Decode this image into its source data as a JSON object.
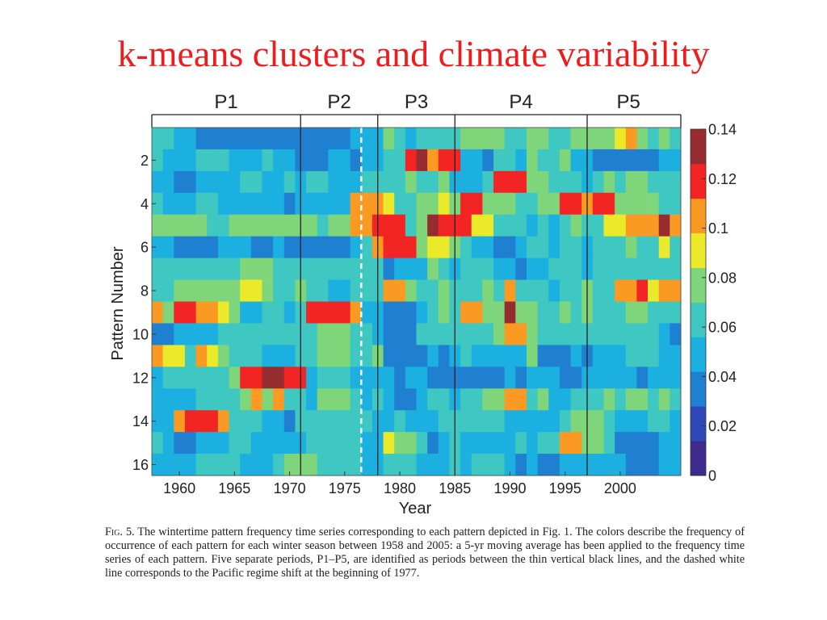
{
  "slide": {
    "title": "k-means clusters and climate variability"
  },
  "caption": {
    "fig_label": "Fig. 5.",
    "text": "The wintertime pattern frequency time series corresponding to each pattern depicted in Fig. 1. The colors describe the frequency of occurrence of each pattern for each winter season between 1958 and 2005: a 5-yr moving average has been applied to the frequency time series of each pattern. Five separate periods, P1–P5, are identified as periods between the thin vertical black lines, and the dashed white line corresponds to the Pacific regime shift at the beginning of 1977."
  },
  "chart_data": {
    "type": "heatmap",
    "xlabel": "Year",
    "ylabel": "Pattern Number",
    "x_start": 1958,
    "x_end": 2005,
    "x_ticks": [
      1960,
      1965,
      1970,
      1975,
      1980,
      1985,
      1990,
      1995,
      2000
    ],
    "y_ticks": [
      2,
      4,
      6,
      8,
      10,
      12,
      14,
      16
    ],
    "years": [
      1958,
      1959,
      1960,
      1961,
      1962,
      1963,
      1964,
      1965,
      1966,
      1967,
      1968,
      1969,
      1970,
      1971,
      1972,
      1973,
      1974,
      1975,
      1976,
      1977,
      1978,
      1979,
      1980,
      1981,
      1982,
      1983,
      1984,
      1985,
      1986,
      1987,
      1988,
      1989,
      1990,
      1991,
      1992,
      1993,
      1994,
      1995,
      1996,
      1997,
      1998,
      1999,
      2000,
      2001,
      2002,
      2003,
      2004,
      2005
    ],
    "patterns": [
      1,
      2,
      3,
      4,
      5,
      6,
      7,
      8,
      9,
      10,
      11,
      12,
      13,
      14,
      15,
      16
    ],
    "values": [
      [
        0.06,
        0.06,
        0.05,
        0.05,
        0.04,
        0.03,
        0.03,
        0.03,
        0.03,
        0.04,
        0.04,
        0.03,
        0.03,
        0.04,
        0.04,
        0.04,
        0.04,
        0.04,
        0.05,
        0.05,
        0.05,
        0.07,
        0.06,
        0.05,
        0.06,
        0.06,
        0.06,
        0.06,
        0.08,
        0.08,
        0.08,
        0.07,
        0.06,
        0.06,
        0.07,
        0.07,
        0.06,
        0.06,
        0.07,
        0.08,
        0.08,
        0.08,
        0.09,
        0.1,
        0.07,
        0.06,
        0.07,
        0.06
      ],
      [
        0.06,
        0.05,
        0.05,
        0.05,
        0.06,
        0.06,
        0.06,
        0.05,
        0.05,
        0.05,
        0.06,
        0.05,
        0.05,
        0.04,
        0.04,
        0.04,
        0.05,
        0.05,
        0.04,
        0.05,
        0.05,
        0.06,
        0.06,
        0.12,
        0.13,
        0.1,
        0.12,
        0.12,
        0.05,
        0.05,
        0.04,
        0.06,
        0.06,
        0.05,
        0.07,
        0.06,
        0.06,
        0.07,
        0.05,
        0.05,
        0.04,
        0.04,
        0.04,
        0.04,
        0.04,
        0.04,
        0.05,
        0.05
      ],
      [
        0.05,
        0.05,
        0.04,
        0.04,
        0.05,
        0.05,
        0.05,
        0.05,
        0.06,
        0.06,
        0.05,
        0.05,
        0.06,
        0.05,
        0.06,
        0.06,
        0.05,
        0.05,
        0.05,
        0.06,
        0.06,
        0.06,
        0.06,
        0.07,
        0.06,
        0.06,
        0.07,
        0.05,
        0.05,
        0.05,
        0.06,
        0.12,
        0.12,
        0.12,
        0.07,
        0.07,
        0.06,
        0.06,
        0.06,
        0.05,
        0.06,
        0.07,
        0.06,
        0.07,
        0.07,
        0.06,
        0.06,
        0.06
      ],
      [
        0.06,
        0.05,
        0.05,
        0.05,
        0.06,
        0.06,
        0.05,
        0.05,
        0.05,
        0.05,
        0.05,
        0.05,
        0.04,
        0.05,
        0.05,
        0.05,
        0.05,
        0.05,
        0.1,
        0.1,
        0.11,
        0.09,
        0.06,
        0.06,
        0.07,
        0.07,
        0.09,
        0.08,
        0.12,
        0.12,
        0.07,
        0.07,
        0.07,
        0.06,
        0.06,
        0.07,
        0.07,
        0.12,
        0.12,
        0.11,
        0.12,
        0.12,
        0.08,
        0.08,
        0.07,
        0.07,
        0.06,
        0.06
      ],
      [
        0.07,
        0.08,
        0.07,
        0.07,
        0.07,
        0.06,
        0.06,
        0.07,
        0.07,
        0.07,
        0.07,
        0.08,
        0.08,
        0.07,
        0.07,
        0.06,
        0.07,
        0.07,
        0.1,
        0.11,
        0.12,
        0.12,
        0.12,
        0.06,
        0.07,
        0.13,
        0.12,
        0.12,
        0.12,
        0.09,
        0.09,
        0.06,
        0.06,
        0.06,
        0.05,
        0.06,
        0.05,
        0.06,
        0.07,
        0.06,
        0.06,
        0.09,
        0.09,
        0.11,
        0.11,
        0.11,
        0.13,
        0.1
      ],
      [
        0.05,
        0.05,
        0.04,
        0.03,
        0.04,
        0.04,
        0.05,
        0.05,
        0.05,
        0.04,
        0.04,
        0.05,
        0.03,
        0.03,
        0.03,
        0.03,
        0.04,
        0.04,
        0.05,
        0.06,
        0.1,
        0.12,
        0.12,
        0.12,
        0.08,
        0.09,
        0.09,
        0.07,
        0.06,
        0.05,
        0.05,
        0.04,
        0.04,
        0.05,
        0.06,
        0.06,
        0.05,
        0.06,
        0.06,
        0.05,
        0.06,
        0.06,
        0.06,
        0.07,
        0.06,
        0.06,
        0.09,
        0.06
      ],
      [
        0.06,
        0.06,
        0.06,
        0.06,
        0.06,
        0.06,
        0.06,
        0.06,
        0.07,
        0.07,
        0.07,
        0.06,
        0.06,
        0.06,
        0.06,
        0.06,
        0.06,
        0.06,
        0.06,
        0.06,
        0.06,
        0.04,
        0.05,
        0.05,
        0.05,
        0.07,
        0.06,
        0.05,
        0.06,
        0.06,
        0.06,
        0.05,
        0.05,
        0.04,
        0.05,
        0.05,
        0.06,
        0.06,
        0.06,
        0.05,
        0.06,
        0.06,
        0.06,
        0.06,
        0.06,
        0.06,
        0.06,
        0.06
      ],
      [
        0.06,
        0.06,
        0.07,
        0.07,
        0.08,
        0.08,
        0.08,
        0.07,
        0.09,
        0.09,
        0.08,
        0.06,
        0.06,
        0.07,
        0.06,
        0.06,
        0.05,
        0.05,
        0.06,
        0.06,
        0.06,
        0.1,
        0.1,
        0.07,
        0.06,
        0.06,
        0.07,
        0.06,
        0.06,
        0.06,
        0.07,
        0.06,
        0.1,
        0.06,
        0.06,
        0.06,
        0.05,
        0.06,
        0.06,
        0.07,
        0.06,
        0.06,
        0.11,
        0.11,
        0.12,
        0.09,
        0.11,
        0.1
      ],
      [
        0.1,
        0.08,
        0.12,
        0.12,
        0.1,
        0.1,
        0.09,
        0.07,
        0.05,
        0.05,
        0.06,
        0.06,
        0.05,
        0.06,
        0.12,
        0.12,
        0.12,
        0.12,
        0.11,
        0.05,
        0.05,
        0.04,
        0.03,
        0.03,
        0.05,
        0.06,
        0.07,
        0.06,
        0.11,
        0.1,
        0.08,
        0.08,
        0.13,
        0.07,
        0.07,
        0.06,
        0.06,
        0.07,
        0.06,
        0.07,
        0.06,
        0.06,
        0.06,
        0.07,
        0.07,
        0.06,
        0.06,
        0.06
      ],
      [
        0.04,
        0.04,
        0.05,
        0.05,
        0.05,
        0.05,
        0.06,
        0.06,
        0.06,
        0.06,
        0.06,
        0.06,
        0.06,
        0.06,
        0.06,
        0.08,
        0.08,
        0.07,
        0.06,
        0.06,
        0.05,
        0.04,
        0.03,
        0.04,
        0.06,
        0.06,
        0.06,
        0.06,
        0.06,
        0.06,
        0.06,
        0.07,
        0.1,
        0.1,
        0.07,
        0.06,
        0.06,
        0.06,
        0.06,
        0.06,
        0.06,
        0.06,
        0.06,
        0.06,
        0.06,
        0.06,
        0.05,
        0.04
      ],
      [
        0.1,
        0.09,
        0.09,
        0.06,
        0.11,
        0.09,
        0.07,
        0.06,
        0.06,
        0.06,
        0.05,
        0.05,
        0.05,
        0.06,
        0.06,
        0.08,
        0.08,
        0.08,
        0.06,
        0.06,
        0.07,
        0.03,
        0.03,
        0.03,
        0.03,
        0.05,
        0.04,
        0.05,
        0.06,
        0.05,
        0.05,
        0.05,
        0.05,
        0.05,
        0.07,
        0.04,
        0.04,
        0.04,
        0.05,
        0.04,
        0.05,
        0.05,
        0.05,
        0.06,
        0.06,
        0.06,
        0.05,
        0.05
      ],
      [
        0.05,
        0.06,
        0.06,
        0.06,
        0.06,
        0.06,
        0.06,
        0.08,
        0.12,
        0.12,
        0.13,
        0.13,
        0.12,
        0.12,
        0.05,
        0.06,
        0.06,
        0.06,
        0.05,
        0.05,
        0.05,
        0.05,
        0.03,
        0.05,
        0.05,
        0.03,
        0.03,
        0.03,
        0.04,
        0.03,
        0.03,
        0.03,
        0.05,
        0.03,
        0.05,
        0.05,
        0.05,
        0.04,
        0.04,
        0.05,
        0.05,
        0.05,
        0.05,
        0.05,
        0.04,
        0.05,
        0.05,
        0.05
      ],
      [
        0.05,
        0.05,
        0.05,
        0.05,
        0.06,
        0.06,
        0.06,
        0.06,
        0.07,
        0.1,
        0.08,
        0.1,
        0.06,
        0.06,
        0.05,
        0.07,
        0.07,
        0.07,
        0.06,
        0.05,
        0.06,
        0.05,
        0.03,
        0.03,
        0.05,
        0.06,
        0.06,
        0.05,
        0.06,
        0.06,
        0.08,
        0.08,
        0.11,
        0.11,
        0.06,
        0.07,
        0.05,
        0.05,
        0.06,
        0.06,
        0.06,
        0.07,
        0.06,
        0.07,
        0.07,
        0.06,
        0.07,
        0.06
      ],
      [
        0.05,
        0.05,
        0.1,
        0.12,
        0.12,
        0.12,
        0.1,
        0.06,
        0.06,
        0.06,
        0.05,
        0.05,
        0.04,
        0.06,
        0.06,
        0.06,
        0.06,
        0.06,
        0.06,
        0.06,
        0.05,
        0.05,
        0.06,
        0.05,
        0.05,
        0.05,
        0.06,
        0.06,
        0.06,
        0.06,
        0.06,
        0.06,
        0.05,
        0.05,
        0.05,
        0.05,
        0.05,
        0.06,
        0.08,
        0.08,
        0.08,
        0.06,
        0.05,
        0.05,
        0.05,
        0.06,
        0.06,
        0.05
      ],
      [
        0.06,
        0.05,
        0.04,
        0.04,
        0.05,
        0.05,
        0.05,
        0.06,
        0.06,
        0.05,
        0.05,
        0.05,
        0.05,
        0.05,
        0.06,
        0.06,
        0.06,
        0.06,
        0.06,
        0.05,
        0.05,
        0.09,
        0.08,
        0.08,
        0.06,
        0.04,
        0.05,
        0.06,
        0.05,
        0.05,
        0.05,
        0.05,
        0.05,
        0.06,
        0.05,
        0.06,
        0.06,
        0.1,
        0.1,
        0.08,
        0.08,
        0.06,
        0.03,
        0.03,
        0.04,
        0.03,
        0.05,
        0.05
      ],
      [
        0.05,
        0.05,
        0.05,
        0.05,
        0.06,
        0.06,
        0.06,
        0.06,
        0.05,
        0.05,
        0.05,
        0.06,
        0.07,
        0.07,
        0.07,
        0.06,
        0.06,
        0.06,
        0.06,
        0.05,
        0.05,
        0.06,
        0.06,
        0.06,
        0.05,
        0.05,
        0.05,
        0.06,
        0.05,
        0.06,
        0.06,
        0.06,
        0.05,
        0.04,
        0.05,
        0.03,
        0.04,
        0.05,
        0.05,
        0.05,
        0.05,
        0.05,
        0.05,
        0.04,
        0.03,
        0.04,
        0.05,
        0.05
      ]
    ],
    "periods": [
      {
        "label": "P1",
        "start": 1958,
        "end": 1971.5
      },
      {
        "label": "P2",
        "start": 1971.5,
        "end": 1978.5
      },
      {
        "label": "P3",
        "start": 1978.5,
        "end": 1985.5
      },
      {
        "label": "P4",
        "start": 1985.5,
        "end": 1997.5
      },
      {
        "label": "P5",
        "start": 1997.5,
        "end": 2005
      }
    ],
    "period_boundaries": [
      1971.5,
      1978.5,
      1985.5,
      1997.5
    ],
    "regime_shift_year": 1977,
    "colorbar": {
      "min": 0,
      "max": 0.14,
      "ticks": [
        0,
        0.02,
        0.04,
        0.06,
        0.08,
        0.1,
        0.12,
        0.14
      ],
      "tick_labels": [
        "0",
        "0.02",
        "0.04",
        "0.06",
        "0.08",
        "0.1",
        "0.12",
        "0.14"
      ],
      "colors": [
        "#3e2a8c",
        "#2e48b8",
        "#1f7fd0",
        "#1bb0e0",
        "#3fc7c2",
        "#7fd67a",
        "#eaea2a",
        "#fa9a22",
        "#f22424",
        "#962c30"
      ]
    }
  }
}
